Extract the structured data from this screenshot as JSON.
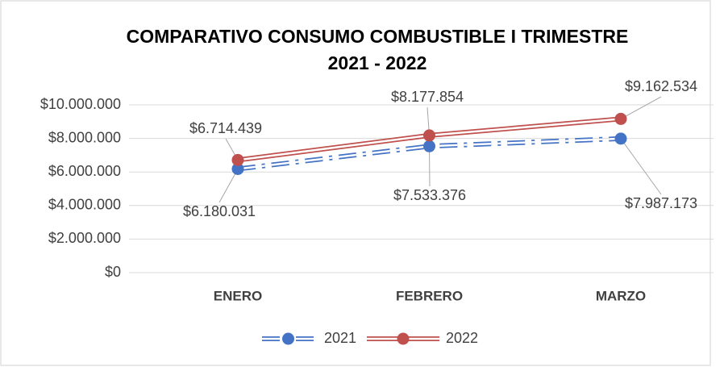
{
  "chart_data": {
    "type": "line",
    "title": [
      "COMPARATIVO CONSUMO COMBUSTIBLE I TRIMESTRE",
      "2021 - 2022"
    ],
    "categories": [
      "ENERO",
      "FEBRERO",
      "MARZO"
    ],
    "series": [
      {
        "name": "2021",
        "color": "#4472c4",
        "values": [
          6180031,
          7533376,
          7987173
        ],
        "value_labels": [
          "$6.180.031",
          "$7.533.376",
          "$7.987.173"
        ]
      },
      {
        "name": "2022",
        "color": "#c0504d",
        "values": [
          6714439,
          8177854,
          9162534
        ],
        "value_labels": [
          "$6.714.439",
          "$8.177.854",
          "$9.162.534"
        ]
      }
    ],
    "ylim": [
      0,
      10000000
    ],
    "yticks": [
      {
        "value": 0,
        "label": "$0"
      },
      {
        "value": 2000000,
        "label": "$2.000.000"
      },
      {
        "value": 4000000,
        "label": "$4.000.000"
      },
      {
        "value": 6000000,
        "label": "$6.000.000"
      },
      {
        "value": 8000000,
        "label": "$8.000.000"
      },
      {
        "value": 10000000,
        "label": "$10.000.000"
      }
    ],
    "grid": true,
    "legend": "bottom"
  }
}
